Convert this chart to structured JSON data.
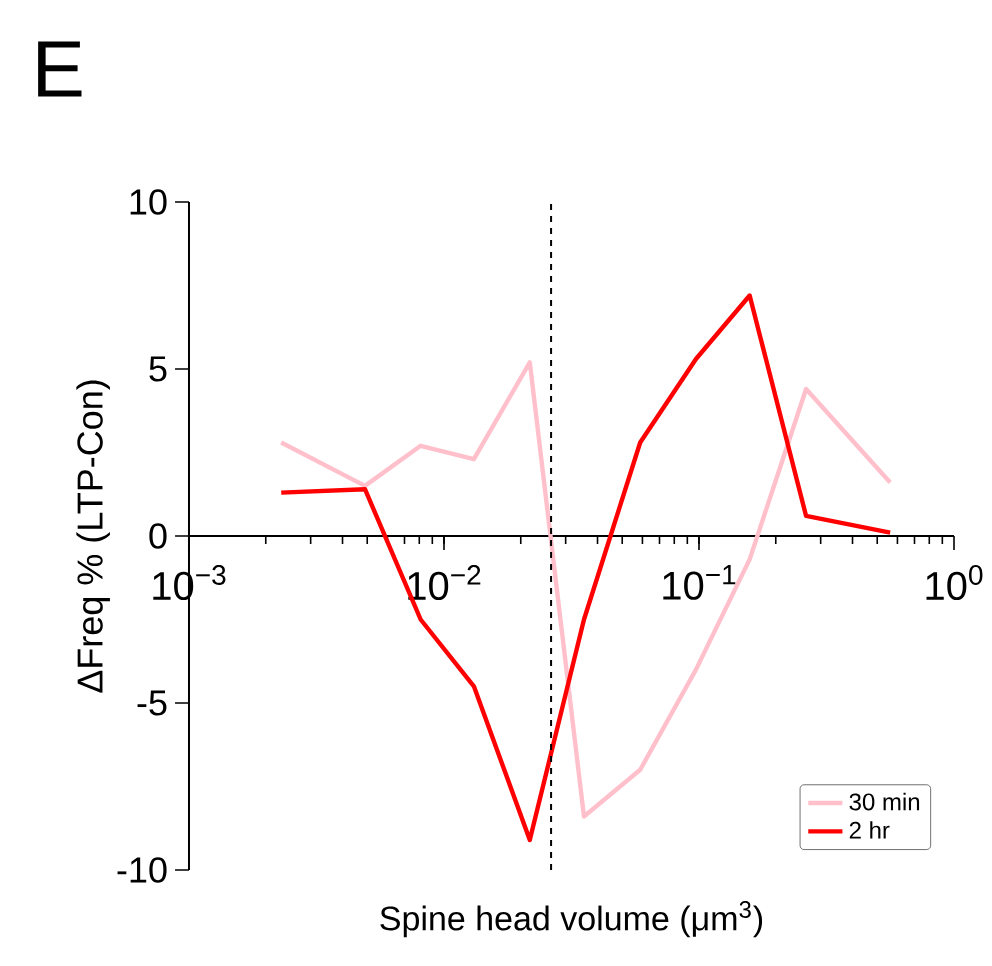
{
  "chart_data": {
    "type": "line",
    "title": "E",
    "xlabel": "Spine head volume (μm$^{3}$)",
    "ylabel": "ΔFreq % (LTP-Con)",
    "log": "x",
    "xlim": [
      0.001,
      1
    ],
    "ylim": [
      -10,
      10
    ],
    "xticks": [
      {
        "value": 0.001,
        "label": "10$^{−3}$"
      },
      {
        "value": 0.01,
        "label": "10$^{−2}$"
      },
      {
        "value": 0.1,
        "label": "10$^{−1}$"
      },
      {
        "value": 1,
        "label": "10$^{0}$"
      }
    ],
    "yticks": [
      -10,
      -5,
      0,
      5,
      10
    ],
    "x": [
      0.0023,
      0.0049,
      0.0081,
      0.0131,
      0.0217,
      0.0354,
      0.0588,
      0.0973,
      0.158,
      0.263,
      0.562
    ],
    "series": [
      {
        "name": "30 min",
        "color": "#ffc0cb",
        "values": [
          2.8,
          1.5,
          2.7,
          2.3,
          5.2,
          -8.4,
          -7.0,
          -4.0,
          -0.7,
          4.4,
          1.6
        ]
      },
      {
        "name": "2 hr",
        "color": "#ff0000",
        "values": [
          1.3,
          1.4,
          -2.5,
          -4.5,
          -9.1,
          -2.5,
          2.8,
          5.3,
          7.2,
          0.6,
          0.1
        ]
      }
    ],
    "ref_lines": [
      {
        "axis": "x",
        "value": 0.0263,
        "color": "#000000",
        "line_style": "dashed"
      }
    ],
    "legend": "bottom right"
  }
}
